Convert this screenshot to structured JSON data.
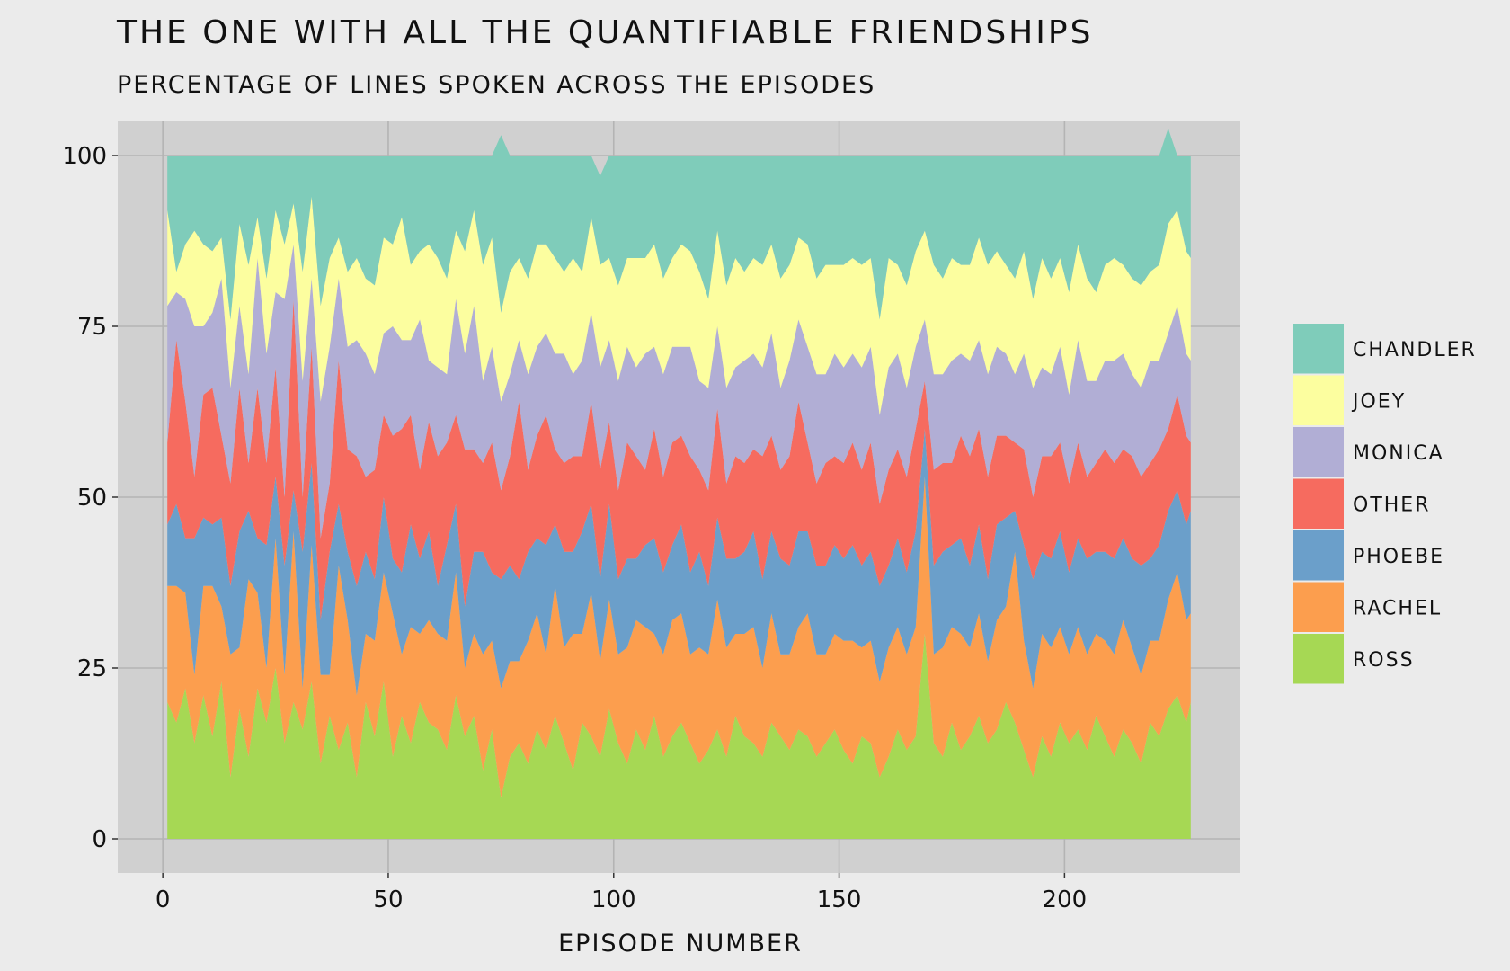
{
  "chart_data": {
    "type": "area",
    "stacked": true,
    "title": "THE ONE WITH ALL THE QUANTIFIABLE FRIENDSHIPS",
    "subtitle": "PERCENTAGE OF LINES SPOKEN ACROSS THE EPISODES",
    "xlabel": "EPISODE NUMBER",
    "ylabel": "",
    "xlim": [
      -10,
      239
    ],
    "ylim": [
      -5,
      105
    ],
    "x_ticks": [
      0,
      50,
      100,
      150,
      200
    ],
    "y_ticks": [
      0,
      25,
      50,
      75,
      100
    ],
    "x_tick_labels": [
      "0",
      "50",
      "100",
      "150",
      "200"
    ],
    "y_tick_labels": [
      "0",
      "25",
      "50",
      "75",
      "100"
    ],
    "grid": true,
    "legend_position": "right",
    "legend_title": "",
    "x": [
      1,
      3,
      5,
      7,
      9,
      11,
      13,
      15,
      17,
      19,
      21,
      23,
      25,
      27,
      29,
      31,
      33,
      35,
      37,
      39,
      41,
      43,
      45,
      47,
      49,
      51,
      53,
      55,
      57,
      59,
      61,
      63,
      65,
      67,
      69,
      71,
      73,
      75,
      77,
      79,
      81,
      83,
      85,
      87,
      89,
      91,
      93,
      95,
      97,
      99,
      101,
      103,
      105,
      107,
      109,
      111,
      113,
      115,
      117,
      119,
      121,
      123,
      125,
      127,
      129,
      131,
      133,
      135,
      137,
      139,
      141,
      143,
      145,
      147,
      149,
      151,
      153,
      155,
      157,
      159,
      161,
      163,
      165,
      167,
      169,
      171,
      173,
      175,
      177,
      179,
      181,
      183,
      185,
      187,
      189,
      191,
      193,
      195,
      197,
      199,
      201,
      203,
      205,
      207,
      209,
      211,
      213,
      215,
      217,
      219,
      221,
      223,
      225,
      227,
      228
    ],
    "series": [
      {
        "name": "ROSS",
        "color": "#a6d854",
        "values": [
          20,
          17,
          22,
          14,
          21,
          15,
          23,
          9,
          19,
          12,
          22,
          17,
          25,
          14,
          20,
          16,
          23,
          11,
          18,
          13,
          17,
          9,
          20,
          15,
          23,
          12,
          18,
          14,
          20,
          17,
          16,
          13,
          21,
          15,
          18,
          10,
          16,
          6,
          12,
          14,
          11,
          16,
          13,
          18,
          14,
          10,
          17,
          15,
          12,
          19,
          14,
          11,
          16,
          13,
          18,
          12,
          15,
          17,
          14,
          11,
          13,
          16,
          12,
          18,
          15,
          14,
          12,
          17,
          15,
          13,
          16,
          15,
          12,
          14,
          16,
          13,
          11,
          15,
          14,
          9,
          12,
          16,
          13,
          15,
          30,
          14,
          12,
          17,
          13,
          15,
          18,
          14,
          16,
          20,
          17,
          13,
          9,
          15,
          12,
          17,
          14,
          16,
          13,
          18,
          15,
          12,
          16,
          14,
          11,
          17,
          15,
          19,
          21,
          17,
          20
        ]
      },
      {
        "name": "RACHEL",
        "color": "#fc9e4e",
        "values": [
          17,
          20,
          14,
          10,
          16,
          22,
          11,
          18,
          9,
          26,
          14,
          8,
          19,
          10,
          25,
          6,
          20,
          13,
          6,
          27,
          15,
          12,
          10,
          14,
          16,
          21,
          9,
          17,
          10,
          15,
          14,
          16,
          18,
          10,
          12,
          17,
          13,
          16,
          14,
          12,
          18,
          17,
          14,
          19,
          14,
          20,
          13,
          21,
          14,
          16,
          13,
          17,
          16,
          18,
          12,
          15,
          17,
          16,
          13,
          17,
          14,
          19,
          16,
          12,
          15,
          17,
          13,
          16,
          12,
          14,
          15,
          18,
          15,
          13,
          14,
          16,
          18,
          13,
          15,
          14,
          16,
          15,
          14,
          16,
          23,
          13,
          16,
          14,
          17,
          13,
          15,
          12,
          16,
          14,
          25,
          16,
          13,
          15,
          16,
          14,
          13,
          15,
          14,
          12,
          14,
          15,
          16,
          14,
          13,
          12,
          14,
          16,
          18,
          15,
          13
        ]
      },
      {
        "name": "PHOEBE",
        "color": "#6b9fca",
        "values": [
          9,
          12,
          8,
          20,
          10,
          9,
          13,
          10,
          17,
          10,
          8,
          18,
          9,
          16,
          6,
          20,
          12,
          8,
          18,
          9,
          10,
          16,
          12,
          9,
          11,
          8,
          12,
          15,
          11,
          13,
          7,
          14,
          10,
          9,
          12,
          15,
          10,
          16,
          14,
          12,
          13,
          11,
          16,
          9,
          14,
          12,
          15,
          13,
          12,
          14,
          11,
          13,
          9,
          12,
          14,
          12,
          11,
          13,
          12,
          14,
          10,
          12,
          13,
          11,
          12,
          14,
          13,
          12,
          14,
          13,
          14,
          12,
          13,
          13,
          13,
          12,
          14,
          12,
          13,
          14,
          12,
          13,
          12,
          14,
          7,
          13,
          14,
          12,
          14,
          12,
          13,
          12,
          14,
          13,
          6,
          14,
          16,
          12,
          13,
          14,
          12,
          13,
          14,
          12,
          13,
          14,
          12,
          13,
          16,
          12,
          14,
          13,
          12,
          14,
          15
        ]
      },
      {
        "name": "OTHER",
        "color": "#f66b5f",
        "values": [
          12,
          24,
          20,
          9,
          18,
          20,
          12,
          15,
          21,
          7,
          22,
          12,
          16,
          10,
          28,
          8,
          17,
          12,
          10,
          21,
          15,
          19,
          11,
          16,
          12,
          18,
          21,
          16,
          13,
          16,
          19,
          15,
          13,
          23,
          15,
          13,
          19,
          13,
          16,
          26,
          12,
          15,
          19,
          11,
          13,
          14,
          11,
          15,
          16,
          12,
          13,
          17,
          15,
          11,
          16,
          14,
          15,
          13,
          17,
          12,
          14,
          16,
          11,
          15,
          13,
          12,
          18,
          14,
          13,
          16,
          19,
          13,
          12,
          15,
          13,
          14,
          15,
          14,
          16,
          12,
          14,
          13,
          14,
          15,
          7,
          14,
          13,
          12,
          15,
          16,
          14,
          15,
          13,
          12,
          10,
          14,
          12,
          14,
          15,
          13,
          13,
          14,
          12,
          13,
          15,
          14,
          13,
          15,
          13,
          14,
          14,
          12,
          14,
          13,
          10
        ]
      },
      {
        "name": "MONICA",
        "color": "#b1aed5",
        "values": [
          20,
          7,
          15,
          22,
          10,
          11,
          23,
          14,
          12,
          13,
          19,
          16,
          11,
          29,
          8,
          17,
          10,
          20,
          20,
          12,
          15,
          17,
          18,
          14,
          12,
          16,
          13,
          11,
          22,
          9,
          13,
          10,
          17,
          14,
          21,
          12,
          14,
          13,
          12,
          9,
          14,
          13,
          12,
          14,
          16,
          12,
          14,
          13,
          15,
          12,
          16,
          14,
          13,
          17,
          12,
          15,
          14,
          13,
          16,
          13,
          15,
          12,
          14,
          13,
          15,
          14,
          13,
          15,
          12,
          14,
          12,
          14,
          16,
          13,
          15,
          14,
          13,
          15,
          14,
          13,
          15,
          14,
          13,
          12,
          9,
          14,
          13,
          15,
          12,
          14,
          13,
          15,
          13,
          12,
          10,
          14,
          16,
          13,
          12,
          14,
          13,
          15,
          14,
          12,
          13,
          15,
          14,
          12,
          13,
          15,
          13,
          14,
          13,
          12,
          12
        ]
      },
      {
        "name": "JOEY",
        "color": "#fcfe9f",
        "values": [
          14,
          3,
          8,
          14,
          12,
          9,
          6,
          10,
          12,
          16,
          6,
          11,
          12,
          8,
          6,
          16,
          12,
          14,
          13,
          6,
          11,
          12,
          11,
          13,
          14,
          12,
          18,
          11,
          10,
          17,
          16,
          14,
          10,
          15,
          14,
          17,
          16,
          13,
          15,
          12,
          14,
          15,
          13,
          14,
          12,
          17,
          13,
          14,
          15,
          12,
          14,
          13,
          16,
          14,
          15,
          14,
          13,
          15,
          14,
          16,
          13,
          14,
          15,
          16,
          13,
          14,
          15,
          13,
          16,
          14,
          12,
          15,
          14,
          16,
          13,
          15,
          14,
          15,
          13,
          14,
          16,
          13,
          15,
          14,
          13,
          16,
          14,
          15,
          13,
          14,
          15,
          16,
          14,
          13,
          14,
          15,
          13,
          16,
          14,
          13,
          15,
          14,
          15,
          13,
          14,
          15,
          13,
          14,
          15,
          13,
          14,
          16,
          14,
          15,
          15
        ]
      },
      {
        "name": "CHANDLER",
        "color": "#7fccba",
        "values": [
          8,
          17,
          13,
          11,
          13,
          14,
          12,
          24,
          10,
          16,
          9,
          18,
          8,
          13,
          7,
          17,
          6,
          22,
          15,
          12,
          17,
          15,
          18,
          19,
          12,
          13,
          9,
          16,
          14,
          13,
          15,
          18,
          11,
          14,
          8,
          16,
          12,
          26,
          17,
          15,
          18,
          13,
          13,
          15,
          17,
          15,
          17,
          9,
          13,
          15,
          19,
          15,
          15,
          15,
          13,
          18,
          15,
          13,
          14,
          17,
          21,
          11,
          19,
          15,
          17,
          15,
          16,
          13,
          18,
          16,
          12,
          13,
          18,
          16,
          16,
          16,
          15,
          16,
          15,
          24,
          15,
          16,
          19,
          14,
          11,
          16,
          18,
          15,
          16,
          16,
          12,
          16,
          14,
          16,
          18,
          14,
          21,
          15,
          18,
          15,
          20,
          13,
          18,
          20,
          16,
          15,
          16,
          18,
          19,
          17,
          16,
          14,
          8,
          14,
          15
        ]
      }
    ]
  }
}
